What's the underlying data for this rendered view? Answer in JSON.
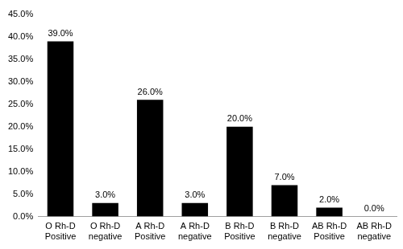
{
  "chart_data": {
    "type": "bar",
    "categories": [
      "O Rh-D Positive",
      "O Rh-D negative",
      "A Rh-D Positive",
      "A Rh-D negative",
      "B Rh-D Positive",
      "B Rh-D negative",
      "AB Rh-D Positive",
      "AB Rh-D negative"
    ],
    "values": [
      39.0,
      3.0,
      26.0,
      3.0,
      20.0,
      7.0,
      2.0,
      0.0
    ],
    "value_labels": [
      "39.0%",
      "3.0%",
      "26.0%",
      "3.0%",
      "20.0%",
      "7.0%",
      "2.0%",
      "0.0%"
    ],
    "data_labels": true,
    "color": "#000000",
    "ylim": [
      0,
      45
    ],
    "yticks": [
      {
        "value": 0,
        "label": "0.0%"
      },
      {
        "value": 5,
        "label": "5.0%"
      },
      {
        "value": 10,
        "label": "10.0%"
      },
      {
        "value": 15,
        "label": "15.0%"
      },
      {
        "value": 20,
        "label": "20.0%"
      },
      {
        "value": 25,
        "label": "25.0%"
      },
      {
        "value": 30,
        "label": "30.0%"
      },
      {
        "value": 35,
        "label": "35.0%"
      },
      {
        "value": 40,
        "label": "40.0%"
      },
      {
        "value": 45,
        "label": "45.0%"
      }
    ],
    "grid": false
  }
}
